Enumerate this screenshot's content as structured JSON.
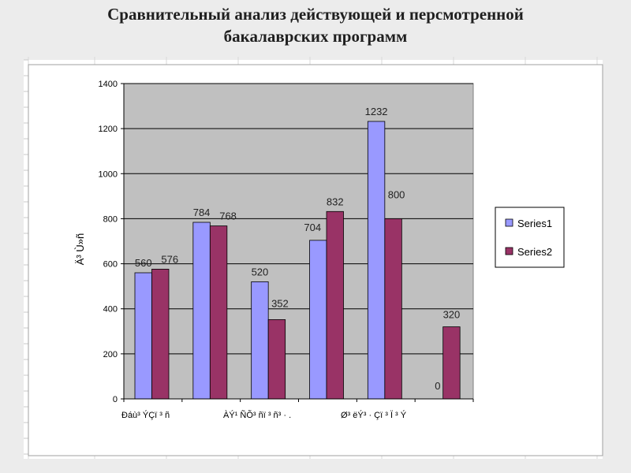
{
  "header": {
    "title_line1": "Сравнительный анализ действующей и персмотренной",
    "title_line2": "бакалаврских программ"
  },
  "chart_data": {
    "type": "bar",
    "categories": [
      "Ðáù³ ÝÇï ³ ñ",
      "",
      "ÀÝ¹ ÑÕ³ ñï ³ ñ³ · .",
      "",
      "Ø³ ëÝ³ · Çï ³ Ï ³ Ý",
      ""
    ],
    "series": [
      {
        "name": "Series1",
        "values": [
          560,
          784,
          520,
          704,
          1232,
          0
        ],
        "color": "#9999ff"
      },
      {
        "name": "Series2",
        "values": [
          576,
          768,
          352,
          832,
          800,
          320
        ],
        "color": "#993366"
      }
    ],
    "data_labels": {
      "Series1": [
        "560",
        "784",
        "520",
        "704",
        "1232",
        "0"
      ],
      "Series2": [
        "576",
        "768",
        "352",
        "832",
        "800",
        "320"
      ]
    },
    "ylabel": "Ä³ Ù»ñ",
    "ylim": [
      0,
      1400
    ],
    "yticks": [
      "0",
      "200",
      "400",
      "600",
      "800",
      "1000",
      "1200",
      "1400"
    ],
    "grid": true,
    "legend_position": "right",
    "plot_background": "#c0c0c0"
  }
}
